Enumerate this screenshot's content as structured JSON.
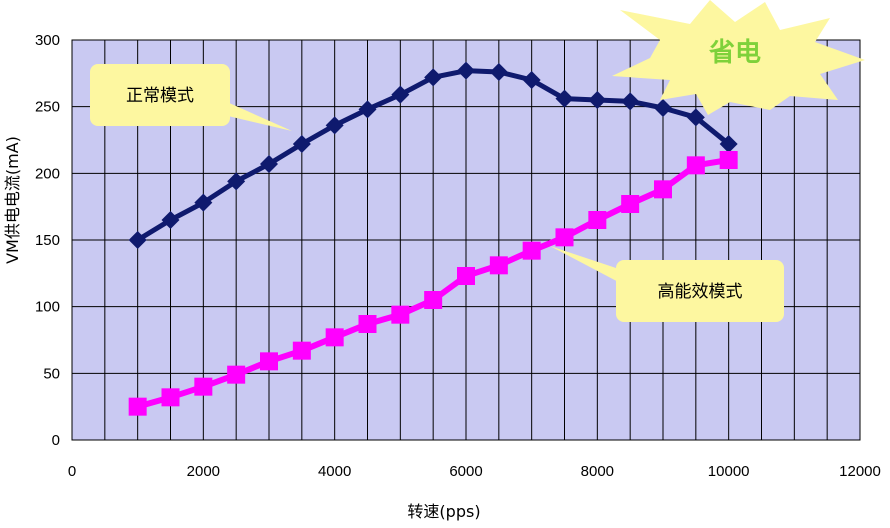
{
  "chart_data": {
    "type": "line",
    "xlabel": "转速(pps)",
    "ylabel": "VM供电电流(mA)",
    "xlim": [
      0,
      12000
    ],
    "ylim": [
      0,
      300
    ],
    "x_ticks": [
      "0",
      "2000",
      "4000",
      "6000",
      "8000",
      "10000",
      "12000"
    ],
    "y_ticks": [
      "0",
      "50",
      "100",
      "150",
      "200",
      "250",
      "300"
    ],
    "grid": true,
    "plot_background": "#c9c9f2",
    "series": [
      {
        "name": "正常模式",
        "color": "#0f1a6e",
        "marker": "diamond",
        "x": [
          1000,
          1500,
          2000,
          2500,
          3000,
          3500,
          4000,
          4500,
          5000,
          5500,
          6000,
          6500,
          7000,
          7500,
          8000,
          8500,
          9000,
          9500,
          10000
        ],
        "y": [
          150,
          165,
          178,
          194,
          207,
          222,
          236,
          248,
          259,
          272,
          277,
          276,
          270,
          256,
          255,
          254,
          249,
          242,
          222
        ]
      },
      {
        "name": "高能效模式",
        "color": "#ff00ff",
        "marker": "square",
        "x": [
          1000,
          1500,
          2000,
          2500,
          3000,
          3500,
          4000,
          4500,
          5000,
          5500,
          6000,
          6500,
          7000,
          7500,
          8000,
          8500,
          9000,
          9500,
          10000
        ],
        "y": [
          25,
          32,
          40,
          49,
          59,
          67,
          77,
          87,
          94,
          105,
          123,
          131,
          142,
          152,
          165,
          177,
          188,
          206,
          210
        ]
      }
    ],
    "annotations": [
      {
        "name": "normal-callout",
        "text": "正常模式"
      },
      {
        "name": "efficient-callout",
        "text": "高能效模式"
      },
      {
        "name": "power-saving-burst",
        "text": "省电"
      }
    ]
  }
}
